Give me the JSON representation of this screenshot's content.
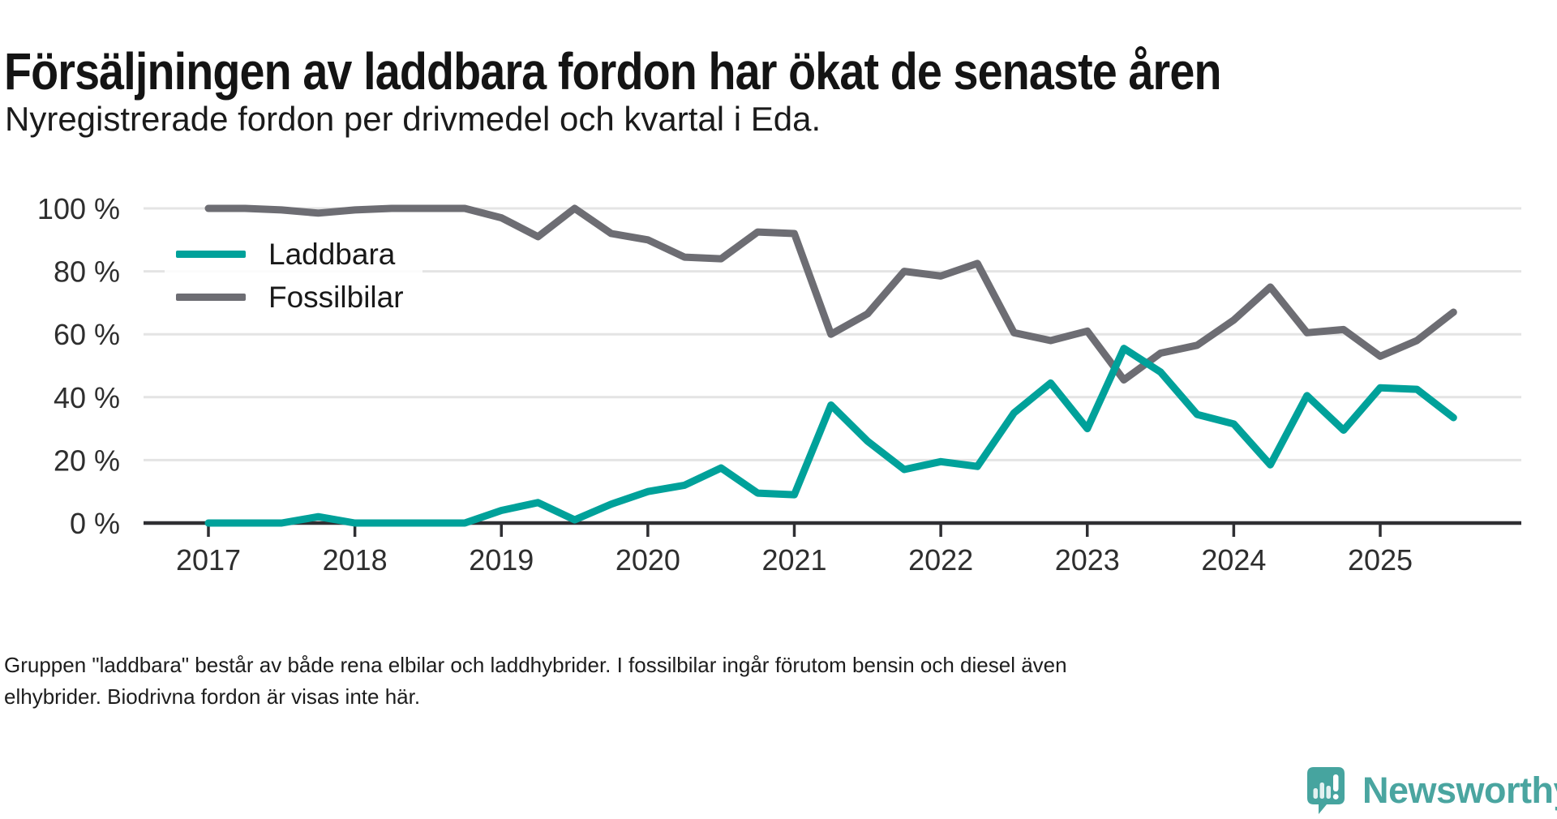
{
  "chart_data": {
    "type": "line",
    "title": "Försäljningen av laddbara fordon har ökat de senaste åren",
    "subtitle": "Nyregistrerade fordon per drivmedel och kvartal i Eda.",
    "unit": "%",
    "ylim": [
      0,
      100
    ],
    "grid": "horizontal",
    "legend_position": "inside-top-left",
    "x_quarters": [
      "2017 Q1",
      "2017 Q2",
      "2017 Q3",
      "2017 Q4",
      "2018 Q1",
      "2018 Q2",
      "2018 Q3",
      "2018 Q4",
      "2019 Q1",
      "2019 Q2",
      "2019 Q3",
      "2019 Q4",
      "2020 Q1",
      "2020 Q2",
      "2020 Q3",
      "2020 Q4",
      "2021 Q1",
      "2021 Q2",
      "2021 Q3",
      "2021 Q4",
      "2022 Q1",
      "2022 Q2",
      "2022 Q3",
      "2022 Q4",
      "2023 Q1",
      "2023 Q2",
      "2023 Q3",
      "2023 Q4",
      "2024 Q1",
      "2024 Q2",
      "2024 Q3",
      "2024 Q4",
      "2025 Q1",
      "2025 Q2",
      "2025 Q3"
    ],
    "x_ticks": [
      {
        "quarter_index": 0,
        "label": "2017"
      },
      {
        "quarter_index": 4,
        "label": "2018"
      },
      {
        "quarter_index": 8,
        "label": "2019"
      },
      {
        "quarter_index": 12,
        "label": "2020"
      },
      {
        "quarter_index": 16,
        "label": "2021"
      },
      {
        "quarter_index": 20,
        "label": "2022"
      },
      {
        "quarter_index": 24,
        "label": "2023"
      },
      {
        "quarter_index": 28,
        "label": "2024"
      },
      {
        "quarter_index": 32,
        "label": "2025"
      }
    ],
    "y_ticks": [
      {
        "value": 0,
        "label": "0 %"
      },
      {
        "value": 20,
        "label": "20 %"
      },
      {
        "value": 40,
        "label": "40 %"
      },
      {
        "value": 60,
        "label": "60 %"
      },
      {
        "value": 80,
        "label": "80 %"
      },
      {
        "value": 100,
        "label": "100 %"
      }
    ],
    "series": [
      {
        "name": "Laddbara",
        "color": "#00a19a",
        "values": [
          0,
          0,
          0,
          2,
          0,
          0,
          0,
          0,
          4,
          6.5,
          1,
          6,
          10,
          12,
          17.5,
          9.5,
          9,
          37.5,
          26,
          17,
          19.5,
          18,
          35,
          44.5,
          30,
          55.5,
          48,
          34.5,
          31.5,
          18.5,
          40.5,
          29.5,
          43,
          42.5,
          33.5
        ]
      },
      {
        "name": "Fossilbilar",
        "color": "#6d6d73",
        "values": [
          100,
          100,
          99.5,
          98.5,
          99.5,
          100,
          100,
          100,
          97,
          91,
          100,
          92,
          90,
          84.5,
          84,
          92.5,
          92,
          60,
          66.5,
          80,
          78.5,
          82.5,
          60.5,
          58,
          61,
          45.5,
          54,
          56.5,
          64.5,
          75,
          60.5,
          61.5,
          53,
          58,
          67
        ]
      }
    ]
  },
  "footnote": {
    "line1": "Gruppen \"laddbara\" består av både rena elbilar och laddhybrider. I fossilbilar ingår förutom bensin och diesel även",
    "line2": "elhybrider. Biodrivna fordon är visas inte här."
  },
  "branding": {
    "label": "Newsworthy",
    "color": "#4aa5a0"
  }
}
